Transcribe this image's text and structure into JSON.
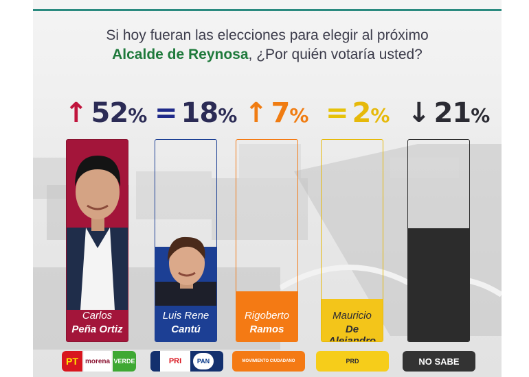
{
  "header": {
    "line1": "Si hoy fueran las elecciones para elegir al próximo",
    "line2_bold": "Alcalde de Reynosa",
    "line2_rest": ", ¿Por quién votaría usted?"
  },
  "chart_data": {
    "type": "bar",
    "categories": [
      "Carlos Peña Ortiz",
      "Luis Rene Cantú",
      "Rigoberto Ramos",
      "Mauricio De Alejandro",
      "NO SABE"
    ],
    "values": [
      52,
      18,
      7,
      2,
      21
    ],
    "ylim": [
      0,
      100
    ]
  },
  "candidates": [
    {
      "first": "Carlos",
      "last": "Peña Ortiz",
      "percent": "52",
      "unit": "%",
      "trend": "↑",
      "trend_color": "#c0143c",
      "fill_color": "#a3153a",
      "label_bg": "#8a1230"
    },
    {
      "first": "Luis Rene",
      "last": "Cantú",
      "percent": "18",
      "unit": "%",
      "trend": "=",
      "trend_color": "#1f2a8a",
      "fill_color": "#1c3f94",
      "label_bg": "#16306f"
    },
    {
      "first": "Rigoberto",
      "last": "Ramos",
      "percent": "7",
      "unit": "%",
      "trend": "↑",
      "trend_color": "#f07c12",
      "fill_color": "#f47a14",
      "label_bg": "#f47a14"
    },
    {
      "first": "Mauricio",
      "last": "De Alejandro",
      "percent": "2",
      "unit": "%",
      "trend": "=",
      "trend_color": "#e6c20a",
      "fill_color": "#f3c51a",
      "label_bg": "#f3c51a"
    },
    {
      "first": "",
      "last": "",
      "percent": "21",
      "unit": "%",
      "trend": "↓",
      "trend_color": "#2b2b33",
      "fill_color": "#2c2c2c",
      "label_bg": "#2c2c2c"
    }
  ],
  "logos": {
    "pt": "PT",
    "morena": "morena",
    "verde": "VERDE",
    "pri": "PRI",
    "pan": "PAN",
    "mc": "MOVIMIENTO CIUDADANO",
    "prd": "PRD",
    "no_sabe": "NO SABE"
  },
  "colors": {
    "accent_green": "#1f7a3c",
    "title_text": "#3b3b4a",
    "top_rule": "#2a8a7f"
  }
}
